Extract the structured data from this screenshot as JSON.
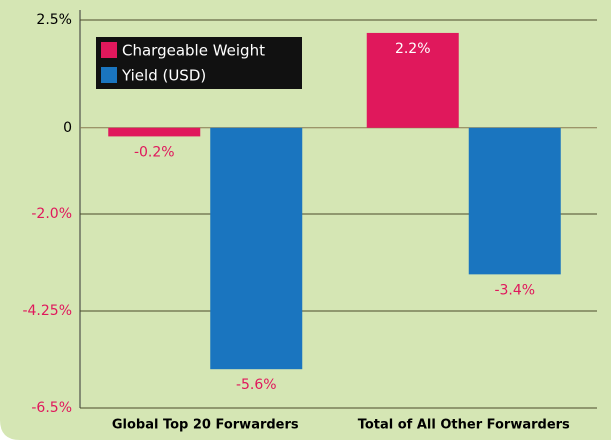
{
  "chart_data": {
    "type": "bar",
    "categories": [
      "Global Top 20 Forwarders",
      "Total of All Other Forwarders"
    ],
    "series": [
      {
        "name": "Chargeable Weight",
        "color": "#e0185c",
        "values": [
          -0.2,
          2.2
        ],
        "value_labels": [
          "-0.2%",
          "2.2%"
        ]
      },
      {
        "name": "Yield (USD)",
        "color": "#1a75bf",
        "values": [
          -5.6,
          -3.4
        ],
        "value_labels": [
          "-5.6%",
          "-3.4%"
        ]
      }
    ],
    "ylim": [
      -6.5,
      2.5
    ],
    "yticks": [
      {
        "value": 2.5,
        "label": "2.5%"
      },
      0,
      {
        "value": -2.0,
        "label": "-2.0%"
      },
      {
        "value": -4.25,
        "label": "-4.25%"
      },
      {
        "value": -6.5,
        "label": "-6.5%"
      }
    ],
    "grid": true,
    "legend": "top-left"
  }
}
